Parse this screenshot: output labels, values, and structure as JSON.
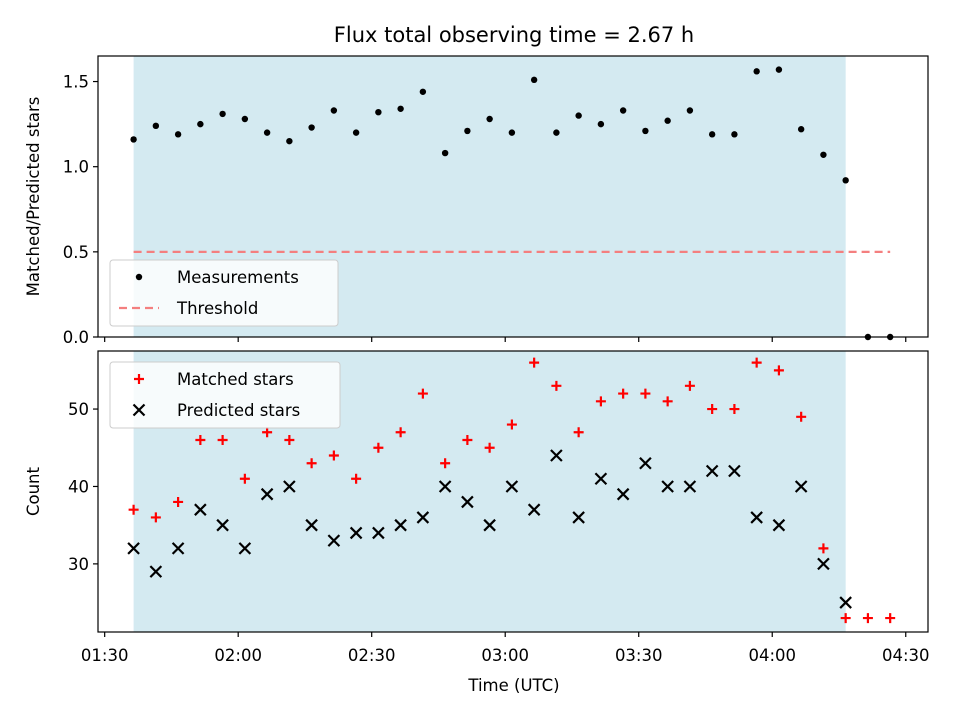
{
  "title": "Flux total observing time = 2.67 h",
  "chart_data": [
    {
      "type": "scatter",
      "ylabel": "Matched/Predicted stars",
      "ylim": [
        0,
        1.65
      ],
      "yticks": [
        0.0,
        0.5,
        1.0,
        1.5
      ],
      "ytick_labels": [
        "0.0",
        "0.5",
        "1.0",
        "1.5"
      ],
      "xlim": [
        88.5,
        275
      ],
      "xticks": [
        90,
        120,
        150,
        180,
        210,
        240,
        270
      ],
      "shaded_interval": [
        96.5,
        256.5
      ],
      "shade_color": "#d4eaf1",
      "legend_position": "lower-left",
      "series": [
        {
          "name": "Measurements",
          "color": "#000000",
          "marker": "dot",
          "x": [
            96.5,
            101.5,
            106.5,
            111.5,
            116.5,
            121.5,
            126.5,
            131.5,
            136.5,
            141.5,
            146.5,
            151.5,
            156.5,
            161.5,
            166.5,
            171.5,
            176.5,
            181.5,
            186.5,
            191.5,
            196.5,
            201.5,
            206.5,
            211.5,
            216.5,
            221.5,
            226.5,
            231.5,
            236.5,
            241.5,
            246.5,
            251.5,
            256.5,
            261.5,
            266.5
          ],
          "y": [
            1.16,
            1.24,
            1.19,
            1.25,
            1.31,
            1.28,
            1.2,
            1.15,
            1.23,
            1.33,
            1.2,
            1.32,
            1.34,
            1.44,
            1.08,
            1.21,
            1.28,
            1.2,
            1.51,
            1.2,
            1.3,
            1.25,
            1.33,
            1.21,
            1.27,
            1.33,
            1.19,
            1.19,
            1.56,
            1.57,
            1.22,
            1.07,
            0.92,
            0.0,
            0.0
          ]
        },
        {
          "name": "Threshold",
          "color": "#f47f7f",
          "style": "dashed",
          "x": [
            96.5,
            266.5
          ],
          "y": [
            0.5,
            0.5
          ]
        }
      ]
    },
    {
      "type": "scatter",
      "ylabel": "Count",
      "xlabel": "Time (UTC)",
      "ylim": [
        21.2,
        57.5
      ],
      "yticks": [
        30,
        40,
        50
      ],
      "ytick_labels": [
        "30",
        "40",
        "50"
      ],
      "xlim": [
        88.5,
        275
      ],
      "xticks": [
        90,
        120,
        150,
        180,
        210,
        240,
        270
      ],
      "xtick_labels": [
        "01:30",
        "02:00",
        "02:30",
        "03:00",
        "03:30",
        "04:00",
        "04:30"
      ],
      "shaded_interval": [
        96.5,
        256.5
      ],
      "shade_color": "#d4eaf1",
      "legend_position": "upper-left",
      "series": [
        {
          "name": "Matched stars",
          "color": "#ff0000",
          "marker": "plus",
          "x": [
            96.5,
            101.5,
            106.5,
            111.5,
            116.5,
            121.5,
            126.5,
            131.5,
            136.5,
            141.5,
            146.5,
            151.5,
            156.5,
            161.5,
            166.5,
            171.5,
            176.5,
            181.5,
            186.5,
            191.5,
            196.5,
            201.5,
            206.5,
            211.5,
            216.5,
            221.5,
            226.5,
            231.5,
            236.5,
            241.5,
            246.5,
            251.5,
            256.5,
            261.5,
            266.5
          ],
          "y": [
            37,
            36,
            38,
            46,
            46,
            41,
            47,
            46,
            43,
            44,
            41,
            45,
            47,
            52,
            43,
            46,
            45,
            48,
            56,
            53,
            47,
            51,
            52,
            52,
            51,
            53,
            50,
            50,
            56,
            55,
            49,
            32,
            23,
            23,
            23
          ]
        },
        {
          "name": "Predicted stars",
          "color": "#000000",
          "marker": "x",
          "x": [
            96.5,
            101.5,
            106.5,
            111.5,
            116.5,
            121.5,
            126.5,
            131.5,
            136.5,
            141.5,
            146.5,
            151.5,
            156.5,
            161.5,
            166.5,
            171.5,
            176.5,
            181.5,
            186.5,
            191.5,
            196.5,
            201.5,
            206.5,
            211.5,
            216.5,
            221.5,
            226.5,
            231.5,
            236.5,
            241.5,
            246.5,
            251.5,
            256.5
          ],
          "y": [
            32,
            29,
            32,
            37,
            35,
            32,
            39,
            40,
            35,
            33,
            34,
            34,
            35,
            36,
            40,
            38,
            35,
            40,
            37,
            44,
            36,
            41,
            39,
            43,
            40,
            40,
            42,
            42,
            36,
            35,
            40,
            30,
            25
          ]
        }
      ]
    }
  ]
}
